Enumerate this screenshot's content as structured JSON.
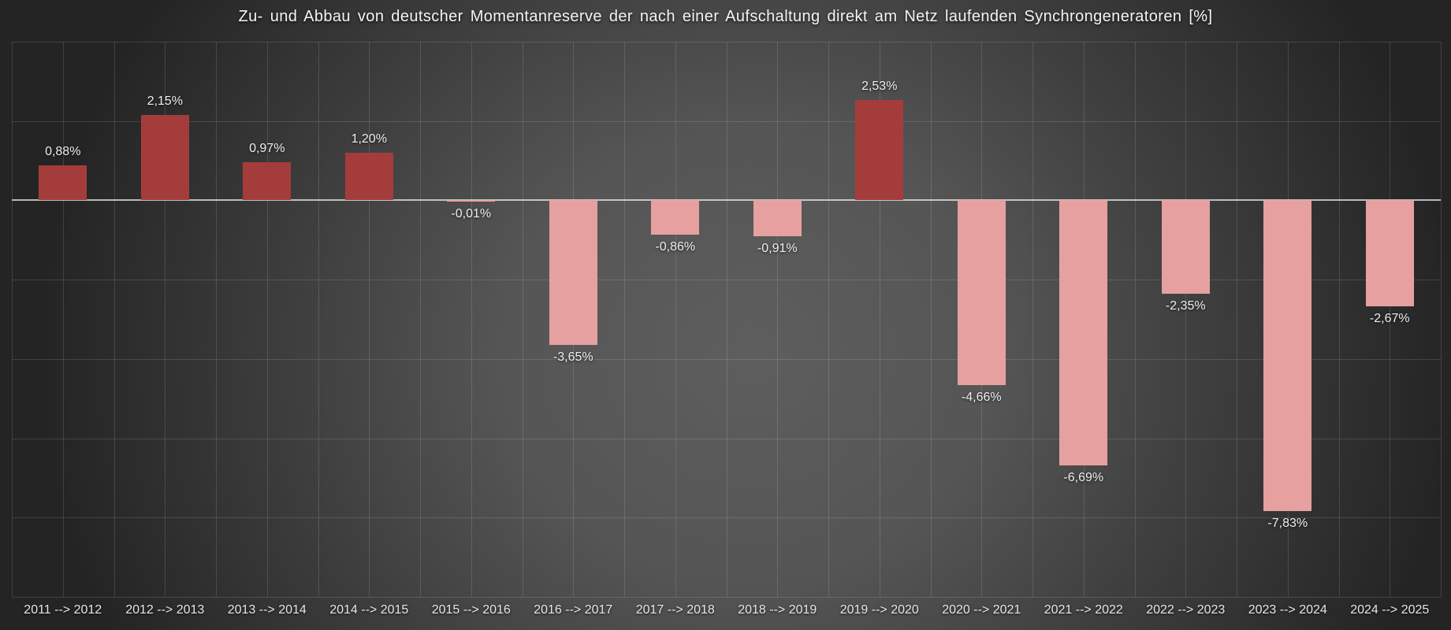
{
  "chart_data": {
    "type": "bar",
    "title": "Zu- und Abbau von deutscher Momentanreserve der nach einer Aufschaltung direkt am Netz laufenden Synchrongeneratoren [%]",
    "categories": [
      "2011 --> 2012",
      "2012 --> 2013",
      "2013 --> 2014",
      "2014 --> 2015",
      "2015 --> 2016",
      "2016 --> 2017",
      "2017 --> 2018",
      "2018 --> 2019",
      "2019 --> 2020",
      "2020 --> 2021",
      "2021 --> 2022",
      "2022 --> 2023",
      "2023 --> 2024",
      "2024 --> 2025"
    ],
    "values": [
      0.88,
      2.15,
      0.97,
      1.2,
      -0.01,
      -3.65,
      -0.86,
      -0.91,
      2.53,
      -4.66,
      -6.69,
      -2.35,
      -7.83,
      -2.67
    ],
    "value_labels": [
      "0,88%",
      "2,15%",
      "0,97%",
      "1,20%",
      "-0,01%",
      "-3,65%",
      "-0,86%",
      "-0,91%",
      "2,53%",
      "-4,66%",
      "-6,69%",
      "-2,35%",
      "-7,83%",
      "-2,67%"
    ],
    "xlabel": "",
    "ylabel": "",
    "ylim": [
      -10,
      4
    ],
    "gridline_step_y": 2,
    "grid": true,
    "legend": false
  },
  "colors": {
    "positive_bar": "#a53c3c",
    "negative_bar": "#e6a0a0",
    "background_center": "#5e5e5e",
    "background_edge": "#242424",
    "gridline": "rgba(255,255,255,0.13)",
    "zero_line": "rgba(235,235,235,0.75)",
    "label_text": "#eeeeee",
    "title_text": "#f4f4f4"
  }
}
